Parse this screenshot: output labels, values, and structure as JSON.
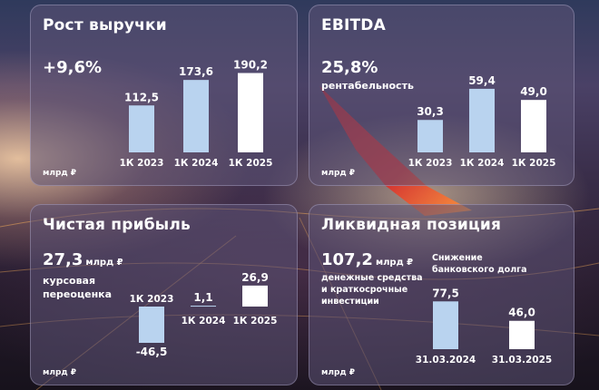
{
  "colors": {
    "bar_past": "#b9d3ef",
    "bar_current": "#ffffff",
    "wing_red": "#d8322e"
  },
  "revenue": {
    "title": "Рост выручки",
    "kpi": "+9,6%",
    "unit": "млрд ₽"
  },
  "ebitda": {
    "title": "EBITDA",
    "kpi": "25,8%",
    "kpi_note": "рентабельность",
    "unit": "млрд ₽"
  },
  "profit": {
    "title": "Чистая прибыль",
    "kpi": "27,3",
    "kpi_unit": "млрд ₽",
    "note": [
      "курсовая",
      "переоценка"
    ],
    "unit": "млрд ₽"
  },
  "liquidity": {
    "title": "Ликвидная позиция",
    "kpi": "107,2",
    "kpi_unit": "млрд ₽",
    "note": [
      "денежные средства",
      "и краткосрочные",
      "инвестиции"
    ],
    "debt_note": [
      "Снижение",
      "банковского долга"
    ],
    "unit": "млрд ₽"
  },
  "chart_data": [
    {
      "type": "bar",
      "title": "Рост выручки",
      "categories": [
        "1К 2023",
        "1К 2024",
        "1К 2025"
      ],
      "values": [
        112.5,
        173.6,
        190.2
      ],
      "value_labels": [
        "112,5",
        "173,6",
        "190,2"
      ],
      "ylabel": "млрд ₽"
    },
    {
      "type": "bar",
      "title": "EBITDA",
      "categories": [
        "1К 2023",
        "1К 2024",
        "1К 2025"
      ],
      "values": [
        30.3,
        59.4,
        49.0
      ],
      "value_labels": [
        "30,3",
        "59,4",
        "49,0"
      ],
      "ylabel": "млрд ₽"
    },
    {
      "type": "bar",
      "title": "Чистая прибыль",
      "categories": [
        "1К 2023",
        "1К 2024",
        "1К 2025"
      ],
      "values": [
        -46.5,
        1.1,
        26.9
      ],
      "value_labels": [
        "-46,5",
        "1,1",
        "26,9"
      ],
      "ylabel": "млрд ₽"
    },
    {
      "type": "bar",
      "title": "Снижение банковского долга",
      "categories": [
        "31.03.2024",
        "31.03.2025"
      ],
      "values": [
        77.5,
        46.0
      ],
      "value_labels": [
        "77,5",
        "46,0"
      ],
      "ylabel": "млрд ₽"
    }
  ]
}
